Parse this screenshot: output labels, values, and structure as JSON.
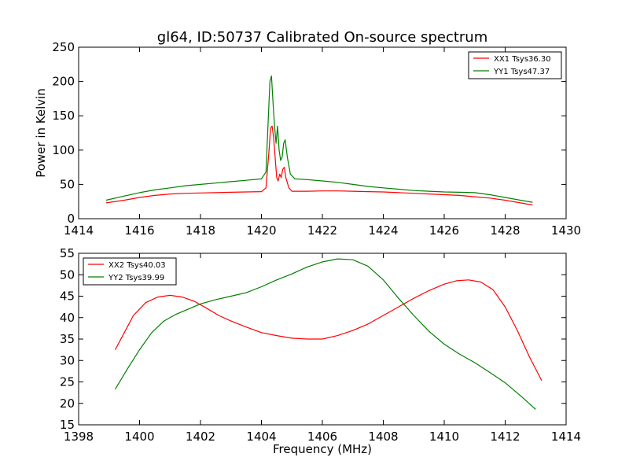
{
  "chart_data": [
    {
      "type": "line",
      "title": "gl64, ID:50737 Calibrated On-source spectrum",
      "xlabel": "",
      "ylabel": "Power in Kelvin",
      "xlim": [
        1414,
        1430
      ],
      "ylim": [
        0,
        250
      ],
      "xticks": [
        1414,
        1416,
        1418,
        1420,
        1422,
        1424,
        1426,
        1428,
        1430
      ],
      "yticks": [
        0,
        50,
        100,
        150,
        200,
        250
      ],
      "grid": false,
      "legend": "top-right",
      "series": [
        {
          "name": "XX1 Tsys36.30",
          "color": "#ff0000",
          "x": [
            1414.9,
            1415.5,
            1416.0,
            1416.5,
            1417.0,
            1417.5,
            1418.0,
            1418.5,
            1419.0,
            1419.5,
            1420.0,
            1420.15,
            1420.25,
            1420.3,
            1420.35,
            1420.4,
            1420.45,
            1420.5,
            1420.55,
            1420.6,
            1420.65,
            1420.7,
            1420.75,
            1420.8,
            1420.9,
            1421.0,
            1421.5,
            1422.0,
            1422.5,
            1423.0,
            1423.5,
            1424.0,
            1424.5,
            1425.0,
            1425.5,
            1426.0,
            1426.5,
            1427.0,
            1427.5,
            1428.0,
            1428.5,
            1428.9
          ],
          "y": [
            23,
            27,
            31,
            34,
            36,
            37,
            37.5,
            38,
            38.5,
            39,
            39.5,
            45,
            100,
            132,
            135,
            118,
            90,
            60,
            55,
            65,
            60,
            72,
            75,
            60,
            45,
            40,
            40,
            40.5,
            40.5,
            40,
            39.5,
            39,
            38,
            37,
            36,
            35,
            34,
            32,
            30,
            27,
            23,
            20
          ]
        },
        {
          "name": "YY1 Tsys47.37",
          "color": "#008000",
          "x": [
            1414.9,
            1415.5,
            1416.0,
            1416.5,
            1417.0,
            1417.5,
            1418.0,
            1418.5,
            1419.0,
            1419.5,
            1420.0,
            1420.15,
            1420.22,
            1420.28,
            1420.33,
            1420.38,
            1420.43,
            1420.48,
            1420.53,
            1420.58,
            1420.63,
            1420.68,
            1420.73,
            1420.78,
            1420.85,
            1420.95,
            1421.1,
            1421.5,
            1422.0,
            1422.5,
            1423.0,
            1423.5,
            1424.0,
            1424.5,
            1425.0,
            1425.5,
            1426.0,
            1426.5,
            1427.0,
            1427.5,
            1428.0,
            1428.5,
            1428.9
          ],
          "y": [
            27,
            33,
            38,
            42,
            45,
            48,
            50,
            52,
            54,
            56,
            58,
            68,
            140,
            200,
            208,
            170,
            135,
            110,
            135,
            100,
            85,
            90,
            110,
            115,
            90,
            65,
            58,
            57,
            55,
            53,
            50,
            47,
            45,
            43,
            41,
            40,
            39,
            38.5,
            38,
            35,
            31,
            27,
            24
          ]
        }
      ]
    },
    {
      "type": "line",
      "title": "",
      "xlabel": "Frequency (MHz)",
      "ylabel": "",
      "xlim": [
        1398,
        1414
      ],
      "ylim": [
        15,
        55
      ],
      "xticks": [
        1398,
        1400,
        1402,
        1404,
        1406,
        1408,
        1410,
        1412,
        1414
      ],
      "yticks": [
        15,
        20,
        25,
        30,
        35,
        40,
        45,
        50,
        55
      ],
      "grid": false,
      "legend": "top-left",
      "series": [
        {
          "name": "XX2 Tsys40.03",
          "color": "#ff0000",
          "x": [
            1399.2,
            1399.5,
            1399.8,
            1400.2,
            1400.6,
            1401.0,
            1401.4,
            1401.8,
            1402.2,
            1402.6,
            1403.0,
            1403.5,
            1404.0,
            1404.5,
            1405.0,
            1405.5,
            1406.0,
            1406.5,
            1407.0,
            1407.5,
            1408.0,
            1408.5,
            1409.0,
            1409.5,
            1410.0,
            1410.4,
            1410.8,
            1411.2,
            1411.6,
            1412.0,
            1412.4,
            1412.8,
            1413.2
          ],
          "y": [
            32.5,
            36.5,
            40.5,
            43.5,
            44.8,
            45.2,
            44.8,
            43.8,
            42.2,
            40.5,
            39.2,
            37.8,
            36.5,
            35.8,
            35.2,
            35.0,
            35.0,
            35.8,
            37.0,
            38.5,
            40.5,
            42.5,
            44.5,
            46.3,
            47.8,
            48.6,
            48.8,
            48.3,
            46.5,
            42.5,
            37.0,
            30.8,
            25.3
          ]
        },
        {
          "name": "YY2 Tsys39.99",
          "color": "#008000",
          "x": [
            1399.2,
            1399.6,
            1400.0,
            1400.4,
            1400.8,
            1401.2,
            1401.6,
            1402.0,
            1402.5,
            1403.0,
            1403.5,
            1404.0,
            1404.5,
            1405.0,
            1405.5,
            1406.0,
            1406.5,
            1407.0,
            1407.5,
            1408.0,
            1408.5,
            1409.0,
            1409.5,
            1410.0,
            1410.5,
            1411.0,
            1411.5,
            1412.0,
            1412.5,
            1413.0
          ],
          "y": [
            23.3,
            28.0,
            32.5,
            36.5,
            39.2,
            40.8,
            42.0,
            43.2,
            44.2,
            45.0,
            45.8,
            47.2,
            48.8,
            50.2,
            51.8,
            53.0,
            53.7,
            53.5,
            52.0,
            48.8,
            44.5,
            40.5,
            36.8,
            33.8,
            31.5,
            29.5,
            27.2,
            24.8,
            21.8,
            18.6
          ]
        }
      ]
    }
  ]
}
